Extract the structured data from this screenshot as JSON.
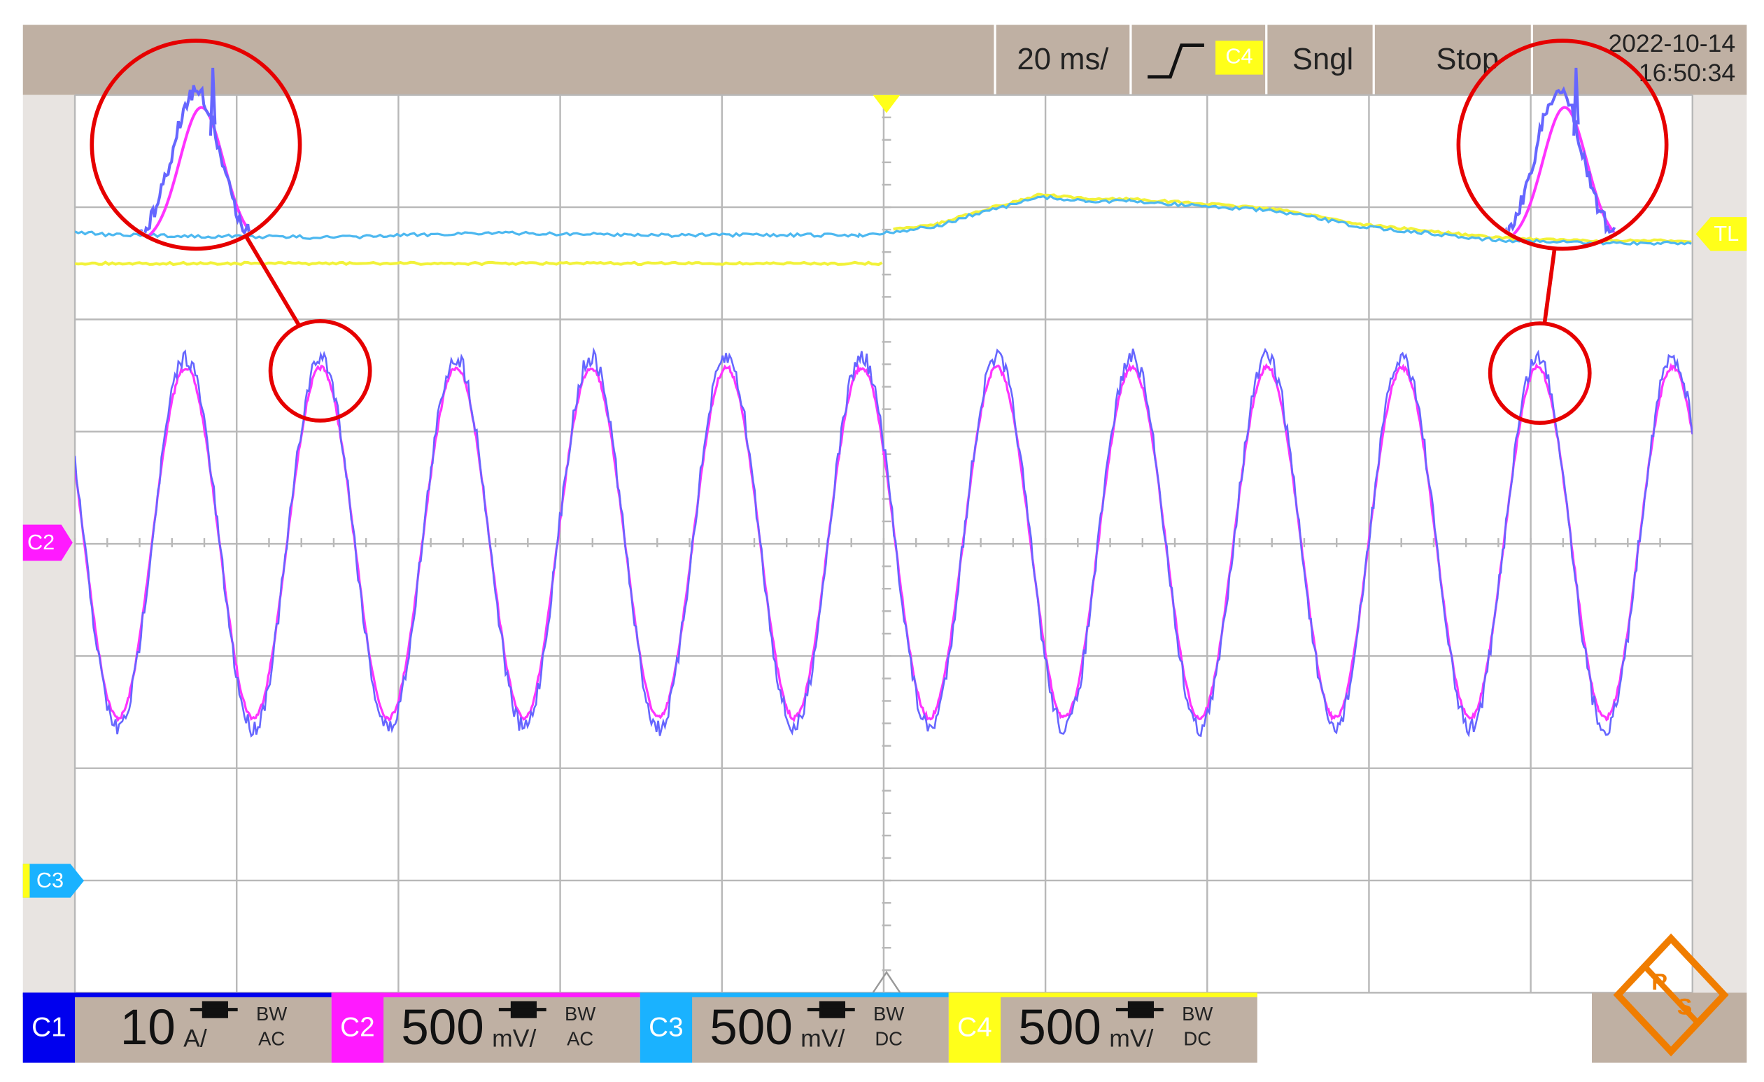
{
  "top_bar": {
    "timebase": "20 ms/",
    "trigger_source": "C4",
    "mode": "Sngl",
    "state": "Stop",
    "date": "2022-10-14",
    "time": "16:50:34"
  },
  "markers": {
    "c2": "C2",
    "c3": "C3",
    "trigger_level": "TL"
  },
  "channels": [
    {
      "label": "C1",
      "scale": "10",
      "unit": "A/",
      "bandwidth": "BW",
      "coupling": "AC"
    },
    {
      "label": "C2",
      "scale": "500",
      "unit": "mV/",
      "bandwidth": "BW",
      "coupling": "AC"
    },
    {
      "label": "C3",
      "scale": "500",
      "unit": "mV/",
      "bandwidth": "BW",
      "coupling": "DC"
    },
    {
      "label": "C4",
      "scale": "500",
      "unit": "mV/",
      "bandwidth": "BW",
      "coupling": "DC"
    }
  ],
  "logo": [
    "R",
    "S"
  ]
}
